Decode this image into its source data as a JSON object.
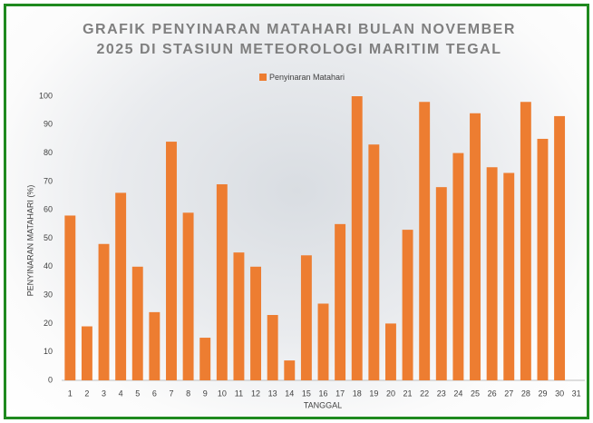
{
  "chart_data": {
    "type": "bar",
    "title": "GRAFIK PENYINARAN MATAHARI BULAN NOVEMBER 2025 DI STASIUN METEOROLOGI MARITIM TEGAL",
    "x_label": "TANGGAL",
    "y_label": "PENYINARAN MATAHARI (%)",
    "categories": [
      "1",
      "2",
      "3",
      "4",
      "5",
      "6",
      "7",
      "8",
      "9",
      "10",
      "11",
      "12",
      "13",
      "14",
      "15",
      "16",
      "17",
      "18",
      "19",
      "20",
      "21",
      "22",
      "23",
      "24",
      "25",
      "26",
      "27",
      "28",
      "29",
      "30",
      "31"
    ],
    "series": [
      {
        "name": "Penyinaran Matahari",
        "color": "#ed7d31",
        "values": [
          58,
          19,
          48,
          66,
          40,
          24,
          84,
          59,
          15,
          69,
          45,
          40,
          23,
          7,
          44,
          27,
          55,
          100,
          83,
          20,
          53,
          98,
          68,
          80,
          94,
          75,
          73,
          98,
          85,
          93,
          null
        ]
      }
    ],
    "ylim": [
      0,
      100
    ],
    "yticks": [
      0,
      10,
      20,
      30,
      40,
      50,
      60,
      70,
      80,
      90,
      100
    ],
    "grid": false,
    "legend": "top"
  }
}
